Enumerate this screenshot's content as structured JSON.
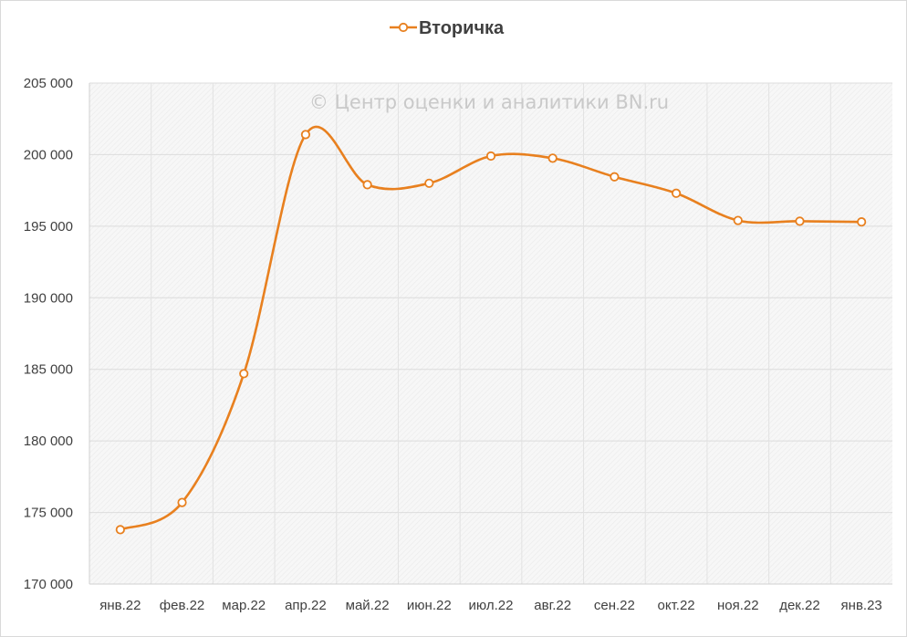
{
  "chart_data": {
    "type": "line",
    "title": "",
    "xlabel": "",
    "ylabel": "",
    "watermark": "© Центр оценки и аналитики BN.ru",
    "categories": [
      "янв.22",
      "фев.22",
      "мар.22",
      "апр.22",
      "май.22",
      "июн.22",
      "июл.22",
      "авг.22",
      "сен.22",
      "окт.22",
      "ноя.22",
      "дек.22",
      "янв.23"
    ],
    "series": [
      {
        "name": "Вторичка",
        "color": "#e8801f",
        "values": [
          173800,
          175700,
          184700,
          201400,
          197900,
          198000,
          199900,
          199750,
          198450,
          197300,
          195400,
          195350,
          195300
        ]
      }
    ],
    "ylim": [
      170000,
      205000
    ],
    "yticks": [
      170000,
      175000,
      180000,
      185000,
      190000,
      195000,
      200000,
      205000
    ],
    "ytick_labels": [
      "170 000",
      "175 000",
      "180 000",
      "185 000",
      "190 000",
      "195 000",
      "200 000",
      "205 000"
    ],
    "grid": true,
    "smooth": true,
    "legend_position": "top-center"
  }
}
